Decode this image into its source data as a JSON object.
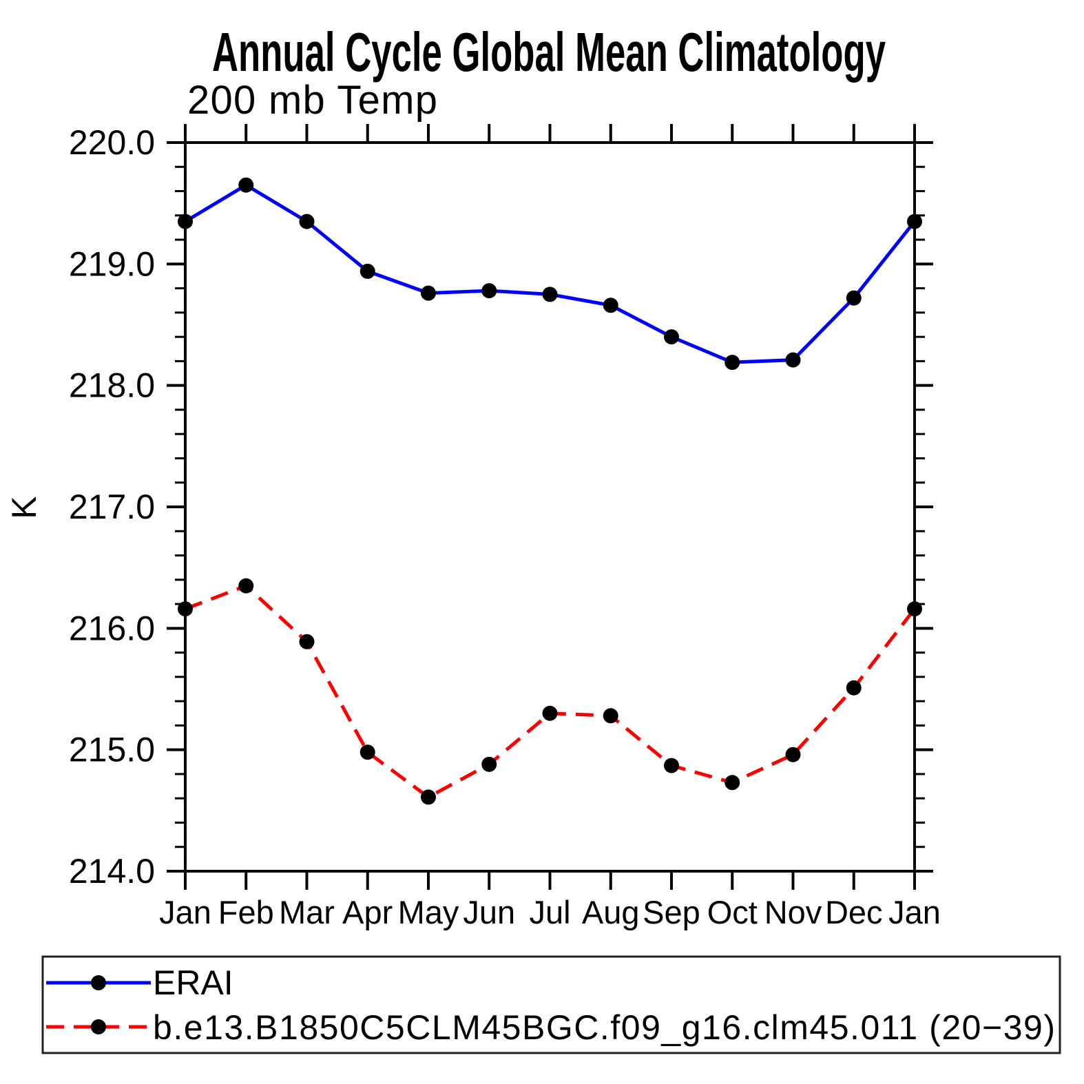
{
  "chart_data": {
    "type": "line",
    "title": "Annual Cycle Global Mean Climatology",
    "subtitle": "200 mb Temp",
    "ylabel": "K",
    "x_categories": [
      "Jan",
      "Feb",
      "Mar",
      "Apr",
      "May",
      "Jun",
      "Jul",
      "Aug",
      "Sep",
      "Oct",
      "Nov",
      "Dec",
      "Jan"
    ],
    "ylim": [
      214.0,
      220.0
    ],
    "y_major_step": 1.0,
    "y_minor_step": 0.2,
    "ytick_labels": [
      "220.0",
      "219.0",
      "218.0",
      "217.0",
      "216.0",
      "215.0",
      "214.0"
    ],
    "grid": false,
    "legend_position": "below-left-box",
    "series": [
      {
        "name": "ERAI",
        "color": "#0000ff",
        "style": "solid",
        "marker": "filled-circle",
        "marker_color": "#000000",
        "values": [
          219.35,
          219.65,
          219.35,
          218.94,
          218.76,
          218.78,
          218.75,
          218.66,
          218.4,
          218.19,
          218.21,
          218.72,
          219.35
        ]
      },
      {
        "name": "b.e13.B1850C5CLM45BGC.f09_g16.clm45.011 (20−39)",
        "color": "#ff0000",
        "style": "dashed",
        "marker": "filled-circle",
        "marker_color": "#000000",
        "values": [
          216.16,
          216.35,
          215.89,
          214.98,
          214.61,
          214.88,
          215.3,
          215.28,
          214.87,
          214.73,
          214.96,
          215.51,
          216.16
        ]
      }
    ],
    "axis_color": "#000000",
    "legend_border_color": "#222222"
  }
}
